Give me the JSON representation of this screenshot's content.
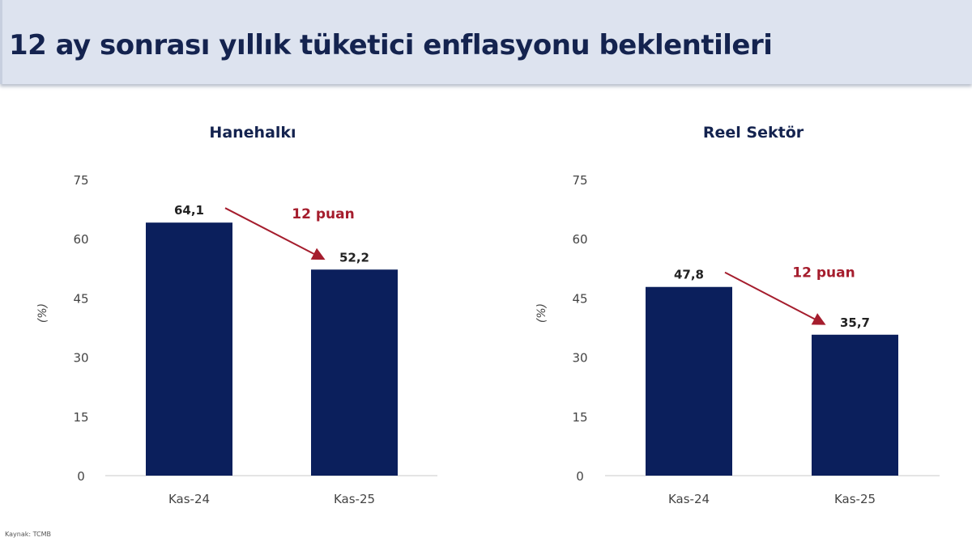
{
  "title": "12 ay sonrası yıllık tüketici enflasyonu beklentileri",
  "source": "Kaynak: TCMB",
  "colors": {
    "bar": "#0b1f5c",
    "annotation": "#a51d2d",
    "text": "#14234f"
  },
  "chart_data": [
    {
      "type": "bar",
      "title": "Hanehalkı",
      "ylabel": "(%)",
      "categories": [
        "Kas-24",
        "Kas-25"
      ],
      "values": [
        64.1,
        52.2
      ],
      "value_labels": [
        "64,1",
        "52,2"
      ],
      "ylim": [
        0,
        75
      ],
      "yticks": [
        0,
        15,
        30,
        45,
        60,
        75
      ],
      "grid": false,
      "annotation": "12 puan"
    },
    {
      "type": "bar",
      "title": "Reel Sektör",
      "ylabel": "(%)",
      "categories": [
        "Kas-24",
        "Kas-25"
      ],
      "values": [
        47.8,
        35.7
      ],
      "value_labels": [
        "47,8",
        "35,7"
      ],
      "ylim": [
        0,
        75
      ],
      "yticks": [
        0,
        15,
        30,
        45,
        60,
        75
      ],
      "grid": false,
      "annotation": "12 puan"
    }
  ]
}
